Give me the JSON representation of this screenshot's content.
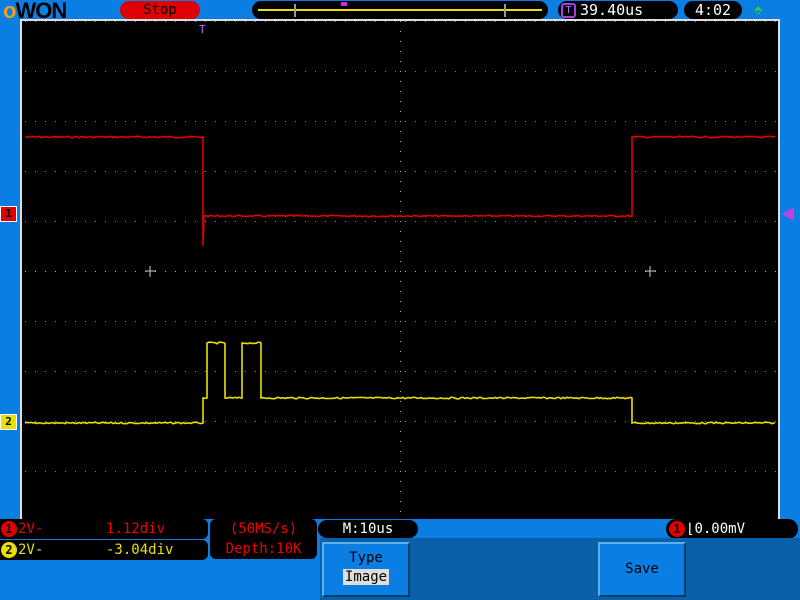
{
  "header": {
    "logo": "OWON",
    "run_state": "Stop",
    "trigger_time": "39.40us",
    "clock": "4:02",
    "usb_icon": "usb-icon"
  },
  "channels": [
    {
      "number": "1",
      "coupling": "2V-",
      "offset": "1.12div",
      "color": "#e00000"
    },
    {
      "number": "2",
      "coupling": "2V-",
      "offset": "-3.04div",
      "color": "#e8e000"
    }
  ],
  "acquisition": {
    "sample_rate": "(50MS/s)",
    "depth": "Depth:10K",
    "timebase": "M:10us"
  },
  "trigger": {
    "source": "1",
    "level": "0.00mV",
    "edge": "falling",
    "marker": "T"
  },
  "menu": {
    "type_label": "Type",
    "type_value": "Image",
    "save_label": "Save"
  },
  "chart_data": {
    "type": "line",
    "xlabel": "",
    "ylabel": "",
    "grid": true,
    "time_per_div_us": 10,
    "volts_per_div": 2,
    "xlim_us": [
      -35.6,
      114.4
    ],
    "series": [
      {
        "channel": "1",
        "color": "#e00000",
        "points_us_V": [
          [
            -35.6,
            3.16
          ],
          [
            0,
            3.16
          ],
          [
            0,
            -1.2
          ],
          [
            0.2,
            0
          ],
          [
            85.8,
            0
          ],
          [
            85.8,
            3.16
          ],
          [
            114.4,
            3.16
          ]
        ]
      },
      {
        "channel": "2",
        "color": "#e8e000",
        "points_us_V": [
          [
            -35.6,
            0
          ],
          [
            0,
            0
          ],
          [
            0,
            1
          ],
          [
            0.8,
            1
          ],
          [
            0.8,
            3.2
          ],
          [
            4.4,
            3.2
          ],
          [
            4.4,
            1
          ],
          [
            7.8,
            1
          ],
          [
            7.8,
            3.2
          ],
          [
            11.6,
            3.2
          ],
          [
            11.6,
            1
          ],
          [
            85.8,
            1
          ],
          [
            85.8,
            0
          ],
          [
            114.4,
            0
          ]
        ]
      }
    ]
  }
}
